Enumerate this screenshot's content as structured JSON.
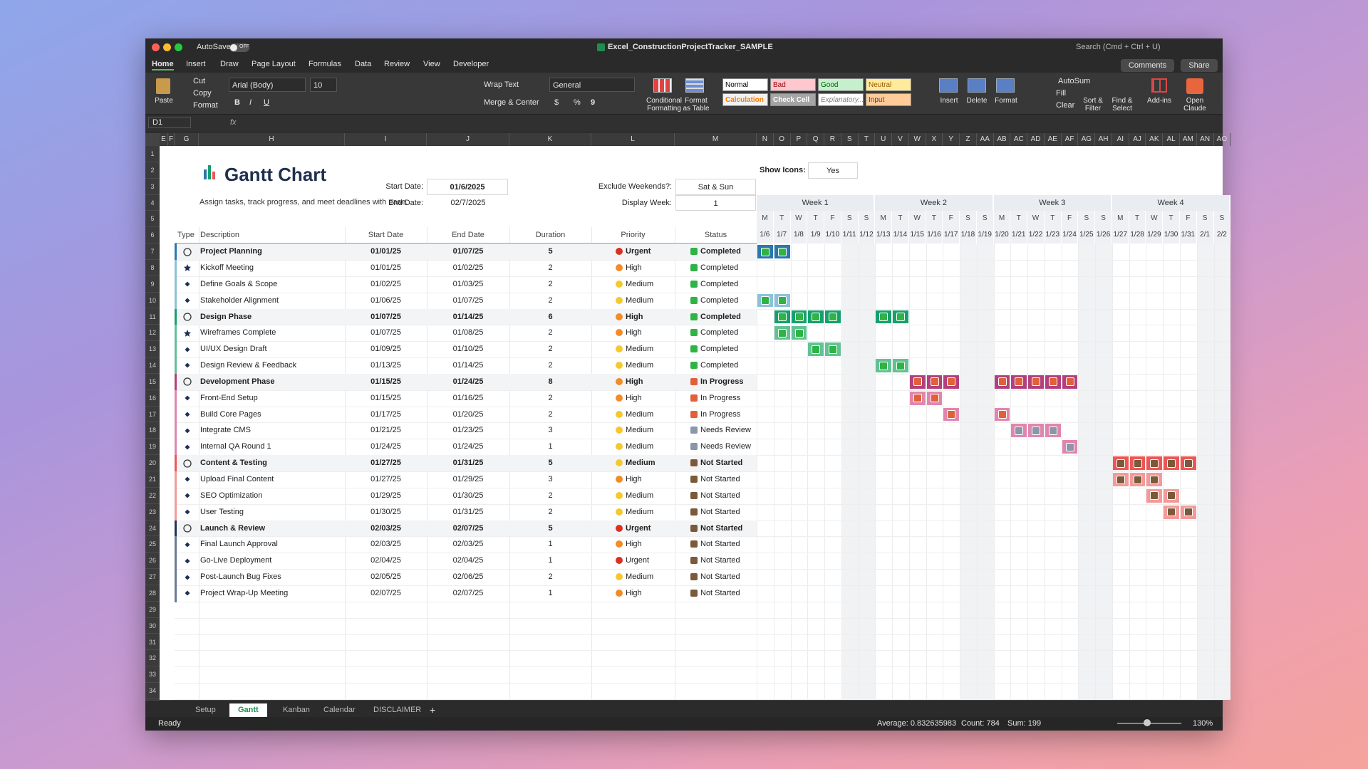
{
  "window": {
    "autosave": "AutoSave",
    "autosave_state": "OFF",
    "filename": "Excel_ConstructionProjectTracker_SAMPLE",
    "search": "Search (Cmd + Ctrl + U)",
    "comments": "Comments",
    "share": "Share"
  },
  "ribbon": {
    "tabs": [
      "Home",
      "Insert",
      "Draw",
      "Page Layout",
      "Formulas",
      "Data",
      "Review",
      "View",
      "Developer"
    ],
    "paste": "Paste",
    "cut": "Cut",
    "copy": "Copy",
    "format_painter": "Format",
    "font": "Arial (Body)",
    "font_size": 10,
    "bold": "B",
    "italic": "I",
    "underline": "U",
    "wrap_text": "Wrap Text",
    "merge": "Merge & Center",
    "number_format": "General",
    "currency": "$",
    "percent": "%",
    "comma": "9",
    "conditional": "Conditional Formatting",
    "format_table": "Format as Table",
    "styles": [
      {
        "label": "Normal",
        "bg": "#ffffff",
        "fg": "#000000"
      },
      {
        "label": "Bad",
        "bg": "#ffc7ce",
        "fg": "#9c0006"
      },
      {
        "label": "Good",
        "bg": "#c6efce",
        "fg": "#006100"
      },
      {
        "label": "Neutral",
        "bg": "#ffeb9c",
        "fg": "#9c5700"
      },
      {
        "label": "Calculation",
        "bg": "#f2f2f2",
        "fg": "#fa7d00"
      },
      {
        "label": "Check Cell",
        "bg": "#a5a5a5",
        "fg": "#ffffff"
      },
      {
        "label": "Explanatory...",
        "bg": "#ffffff",
        "fg": "#7f7f7f"
      },
      {
        "label": "Input",
        "bg": "#ffcc99",
        "fg": "#3f3f76"
      }
    ],
    "insert": "Insert",
    "delete": "Delete",
    "format": "Format",
    "autosum": "AutoSum",
    "fill": "Fill",
    "clear": "Clear",
    "sort_filter": "Sort & Filter",
    "find_select": "Find & Select",
    "addins": "Add-ins",
    "claude": "Open Claude"
  },
  "formula_bar": {
    "cell": "D1",
    "fx": "fx"
  },
  "sheet": {
    "columns": [
      "E",
      "F",
      "G",
      "H",
      "I",
      "J",
      "K",
      "L",
      "M",
      "N",
      "O",
      "P",
      "Q",
      "R",
      "S",
      "T",
      "U",
      "V",
      "W",
      "X",
      "Y",
      "Z",
      "AA",
      "AB",
      "AC",
      "AD",
      "AE",
      "AF",
      "AG",
      "AH",
      "AI",
      "AJ",
      "AK",
      "AL",
      "AM",
      "AN",
      "AO"
    ],
    "row_numbers": [
      1,
      2,
      3,
      4,
      5,
      6,
      7,
      8,
      9,
      10,
      11,
      12,
      13,
      14,
      15,
      16,
      17,
      18,
      19,
      20,
      21,
      22,
      23,
      24,
      25,
      26,
      27,
      28,
      29,
      30,
      31,
      32,
      33,
      34
    ],
    "title": "Gantt Chart",
    "subtitle": "Assign tasks, track progress, and meet deadlines with ease.",
    "start_date_label": "Start Date:",
    "start_date": "01/6/2025",
    "end_date_label": "End Date:",
    "end_date": "02/7/2025",
    "exclude_label": "Exclude Weekends?:",
    "exclude": "Sat & Sun",
    "display_week_label": "Display Week:",
    "display_week": 1,
    "show_icons_label": "Show Icons:",
    "show_icons": "Yes",
    "weeks": [
      "Week 1",
      "Week 2",
      "Week 3",
      "Week 4"
    ],
    "days": [
      {
        "letter": "M",
        "date": "1/6",
        "weekend": false
      },
      {
        "letter": "T",
        "date": "1/7",
        "weekend": false
      },
      {
        "letter": "W",
        "date": "1/8",
        "weekend": false
      },
      {
        "letter": "T",
        "date": "1/9",
        "weekend": false
      },
      {
        "letter": "F",
        "date": "1/10",
        "weekend": false
      },
      {
        "letter": "S",
        "date": "1/11",
        "weekend": true
      },
      {
        "letter": "S",
        "date": "1/12",
        "weekend": true
      },
      {
        "letter": "M",
        "date": "1/13",
        "weekend": false
      },
      {
        "letter": "T",
        "date": "1/14",
        "weekend": false
      },
      {
        "letter": "W",
        "date": "1/15",
        "weekend": false
      },
      {
        "letter": "T",
        "date": "1/16",
        "weekend": false
      },
      {
        "letter": "F",
        "date": "1/17",
        "weekend": false
      },
      {
        "letter": "S",
        "date": "1/18",
        "weekend": true
      },
      {
        "letter": "S",
        "date": "1/19",
        "weekend": true
      },
      {
        "letter": "M",
        "date": "1/20",
        "weekend": false
      },
      {
        "letter": "T",
        "date": "1/21",
        "weekend": false
      },
      {
        "letter": "W",
        "date": "1/22",
        "weekend": false
      },
      {
        "letter": "T",
        "date": "1/23",
        "weekend": false
      },
      {
        "letter": "F",
        "date": "1/24",
        "weekend": false
      },
      {
        "letter": "S",
        "date": "1/25",
        "weekend": true
      },
      {
        "letter": "S",
        "date": "1/26",
        "weekend": true
      },
      {
        "letter": "M",
        "date": "1/27",
        "weekend": false
      },
      {
        "letter": "T",
        "date": "1/28",
        "weekend": false
      },
      {
        "letter": "W",
        "date": "1/29",
        "weekend": false
      },
      {
        "letter": "T",
        "date": "1/30",
        "weekend": false
      },
      {
        "letter": "F",
        "date": "1/31",
        "weekend": false
      },
      {
        "letter": "S",
        "date": "2/1",
        "weekend": true
      },
      {
        "letter": "S",
        "date": "2/2",
        "weekend": true
      }
    ],
    "headers": [
      "Type",
      "Description",
      "Start Date",
      "End Date",
      "Duration",
      "Priority",
      "Status"
    ],
    "tasks": [
      {
        "type": "phase",
        "description": "Project Planning",
        "start": "01/01/25",
        "end": "01/07/25",
        "duration": 5,
        "priority": "Urgent",
        "status": "Completed",
        "color": "#2a78ad",
        "priority_color": "#d93025",
        "status_color": "#2fb344"
      },
      {
        "type": "milestone",
        "description": "Kickoff Meeting",
        "start": "01/01/25",
        "end": "01/02/25",
        "duration": 2,
        "priority": "High",
        "status": "Completed",
        "color": "#8cc2d9",
        "priority_color": "#f28c28",
        "status_color": "#2fb344"
      },
      {
        "type": "task",
        "description": "Define Goals & Scope",
        "start": "01/02/25",
        "end": "01/03/25",
        "duration": 2,
        "priority": "Medium",
        "status": "Completed",
        "color": "#8cc2d9",
        "priority_color": "#f6c830",
        "status_color": "#2fb344"
      },
      {
        "type": "task",
        "description": "Stakeholder Alignment",
        "start": "01/06/25",
        "end": "01/07/25",
        "duration": 2,
        "priority": "Medium",
        "status": "Completed",
        "color": "#8cc2d9",
        "priority_color": "#f6c830",
        "status_color": "#2fb344"
      },
      {
        "type": "phase",
        "description": "Design Phase",
        "start": "01/07/25",
        "end": "01/14/25",
        "duration": 6,
        "priority": "High",
        "status": "Completed",
        "color": "#16a06f",
        "priority_color": "#f28c28",
        "status_color": "#2fb344"
      },
      {
        "type": "milestone",
        "description": "Wireframes Complete",
        "start": "01/07/25",
        "end": "01/08/25",
        "duration": 2,
        "priority": "High",
        "status": "Completed",
        "color": "#62c195",
        "priority_color": "#f28c28",
        "status_color": "#2fb344"
      },
      {
        "type": "task",
        "description": "UI/UX Design Draft",
        "start": "01/09/25",
        "end": "01/10/25",
        "duration": 2,
        "priority": "Medium",
        "status": "Completed",
        "color": "#62c195",
        "priority_color": "#f6c830",
        "status_color": "#2fb344"
      },
      {
        "type": "task",
        "description": "Design Review & Feedback",
        "start": "01/13/25",
        "end": "01/14/25",
        "duration": 2,
        "priority": "Medium",
        "status": "Completed",
        "color": "#62c195",
        "priority_color": "#f6c830",
        "status_color": "#2fb344"
      },
      {
        "type": "phase",
        "description": "Development Phase",
        "start": "01/15/25",
        "end": "01/24/25",
        "duration": 8,
        "priority": "High",
        "status": "In Progress",
        "color": "#b3407d",
        "priority_color": "#f28c28",
        "status_color": "#e0603a"
      },
      {
        "type": "task",
        "description": "Front-End Setup",
        "start": "01/15/25",
        "end": "01/16/25",
        "duration": 2,
        "priority": "High",
        "status": "In Progress",
        "color": "#e086ae",
        "priority_color": "#f28c28",
        "status_color": "#e0603a"
      },
      {
        "type": "task",
        "description": "Build Core Pages",
        "start": "01/17/25",
        "end": "01/20/25",
        "duration": 2,
        "priority": "Medium",
        "status": "In Progress",
        "color": "#e086ae",
        "priority_color": "#f6c830",
        "status_color": "#e0603a"
      },
      {
        "type": "task",
        "description": "Integrate CMS",
        "start": "01/21/25",
        "end": "01/23/25",
        "duration": 3,
        "priority": "Medium",
        "status": "Needs Review",
        "color": "#e086ae",
        "priority_color": "#f6c830",
        "status_color": "#8a97a8"
      },
      {
        "type": "task",
        "description": "Internal QA Round 1",
        "start": "01/24/25",
        "end": "01/24/25",
        "duration": 1,
        "priority": "Medium",
        "status": "Needs Review",
        "color": "#e086ae",
        "priority_color": "#f6c830",
        "status_color": "#8a97a8"
      },
      {
        "type": "phase",
        "description": "Content & Testing",
        "start": "01/27/25",
        "end": "01/31/25",
        "duration": 5,
        "priority": "Medium",
        "status": "Not Started",
        "color": "#ee5656",
        "priority_color": "#f6c830",
        "status_color": "#7a5a3a"
      },
      {
        "type": "task",
        "description": "Upload Final Content",
        "start": "01/27/25",
        "end": "01/29/25",
        "duration": 3,
        "priority": "High",
        "status": "Not Started",
        "color": "#f49a9a",
        "priority_color": "#f28c28",
        "status_color": "#7a5a3a"
      },
      {
        "type": "task",
        "description": "SEO Optimization",
        "start": "01/29/25",
        "end": "01/30/25",
        "duration": 2,
        "priority": "Medium",
        "status": "Not Started",
        "color": "#f49a9a",
        "priority_color": "#f6c830",
        "status_color": "#7a5a3a"
      },
      {
        "type": "task",
        "description": "User Testing",
        "start": "01/30/25",
        "end": "01/31/25",
        "duration": 2,
        "priority": "Medium",
        "status": "Not Started",
        "color": "#f49a9a",
        "priority_color": "#f6c830",
        "status_color": "#7a5a3a"
      },
      {
        "type": "phase",
        "description": "Launch & Review",
        "start": "02/03/25",
        "end": "02/07/25",
        "duration": 5,
        "priority": "Urgent",
        "status": "Not Started",
        "color": "#24335a",
        "priority_color": "#d93025",
        "status_color": "#7a5a3a"
      },
      {
        "type": "task",
        "description": "Final Launch Approval",
        "start": "02/03/25",
        "end": "02/03/25",
        "duration": 1,
        "priority": "High",
        "status": "Not Started",
        "color": "#6a7899",
        "priority_color": "#f28c28",
        "status_color": "#7a5a3a"
      },
      {
        "type": "task",
        "description": "Go-Live Deployment",
        "start": "02/04/25",
        "end": "02/04/25",
        "duration": 1,
        "priority": "Urgent",
        "status": "Not Started",
        "color": "#6a7899",
        "priority_color": "#d93025",
        "status_color": "#7a5a3a"
      },
      {
        "type": "task",
        "description": "Post-Launch Bug Fixes",
        "start": "02/05/25",
        "end": "02/06/25",
        "duration": 2,
        "priority": "Medium",
        "status": "Not Started",
        "color": "#6a7899",
        "priority_color": "#f6c830",
        "status_color": "#7a5a3a"
      },
      {
        "type": "task",
        "description": "Project Wrap-Up Meeting",
        "start": "02/07/25",
        "end": "02/07/25",
        "duration": 1,
        "priority": "High",
        "status": "Not Started",
        "color": "#6a7899",
        "priority_color": "#f28c28",
        "status_color": "#7a5a3a"
      }
    ]
  },
  "sheet_tabs": {
    "tabs": [
      "Setup",
      "Gantt",
      "Kanban",
      "Calendar",
      "DISCLAIMER"
    ],
    "active": 1,
    "add": "+"
  },
  "status_bar": {
    "ready": "Ready",
    "average": "Average: 0.832635983",
    "count": "Count: 784",
    "sum": "Sum: 199",
    "zoom": "130%"
  }
}
